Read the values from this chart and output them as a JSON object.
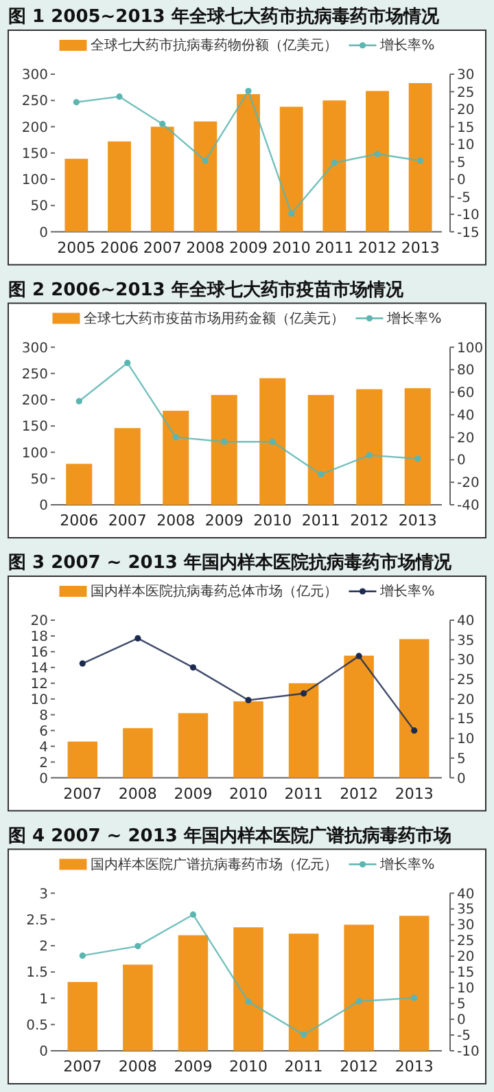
{
  "chart_data": [
    {
      "type": "bar",
      "title": "图 1  2005~2013 年全球七大药市抗病毒药市场情况",
      "categories": [
        "2005",
        "2006",
        "2007",
        "2008",
        "2009",
        "2010",
        "2011",
        "2012",
        "2013"
      ],
      "series": [
        {
          "name": "全球七大药市抗病毒药物份额（亿美元）",
          "color": "#f0961e",
          "values": [
            139,
            172,
            200,
            210,
            262,
            238,
            250,
            268,
            283
          ]
        },
        {
          "name": "增长率%",
          "type": "line",
          "axis": "y2",
          "color": "#5bb5b0",
          "values": [
            22,
            23.6,
            15.8,
            5.3,
            25.2,
            -9.8,
            4.7,
            7.2,
            5.3
          ]
        }
      ],
      "ylim": [
        0,
        300
      ],
      "yticks": [
        0,
        50,
        100,
        150,
        200,
        250,
        300
      ],
      "y2lim": [
        -15,
        30
      ],
      "y2ticks": [
        -15,
        -10,
        -5,
        0,
        5,
        10,
        15,
        20,
        25,
        30
      ],
      "legend": "top",
      "marker": "circle"
    },
    {
      "type": "bar",
      "title": "图 2  2006~2013 年全球七大药市疫苗市场情况",
      "categories": [
        "2006",
        "2007",
        "2008",
        "2009",
        "2010",
        "2011",
        "2012",
        "2013"
      ],
      "series": [
        {
          "name": "全球七大药市疫苗市场用药金额（亿美元）",
          "color": "#f0961e",
          "values": [
            78,
            146,
            179,
            209,
            241,
            209,
            220,
            222
          ]
        },
        {
          "name": "增长率%",
          "type": "line",
          "axis": "y2",
          "color": "#5bb5b0",
          "values": [
            52,
            86,
            20,
            16,
            16,
            -13,
            4,
            1
          ]
        }
      ],
      "ylim": [
        0,
        300
      ],
      "yticks": [
        0,
        50,
        100,
        150,
        200,
        250,
        300
      ],
      "y2lim": [
        -40,
        100
      ],
      "y2ticks": [
        -40,
        -20,
        0,
        20,
        40,
        60,
        80,
        100
      ],
      "legend": "top",
      "marker": "circle"
    },
    {
      "type": "bar",
      "title": "图 3  2007 ~ 2013 年国内样本医院抗病毒药市场情况",
      "categories": [
        "2007",
        "2008",
        "2009",
        "2010",
        "2011",
        "2012",
        "2013"
      ],
      "series": [
        {
          "name": "国内样本医院抗病毒药总体市场（亿元）",
          "color": "#f0961e",
          "values": [
            4.6,
            6.3,
            8.2,
            9.7,
            12,
            15.5,
            17.6
          ]
        },
        {
          "name": "增长率%",
          "type": "line",
          "axis": "y2",
          "color": "#1d2b50",
          "values": [
            29,
            35.4,
            28,
            19.7,
            21.4,
            30.9,
            12
          ]
        }
      ],
      "ylim": [
        0,
        20
      ],
      "yticks": [
        0,
        2,
        4,
        6,
        8,
        10,
        12,
        14,
        16,
        18,
        20
      ],
      "y2lim": [
        0,
        40
      ],
      "y2ticks": [
        0,
        5,
        10,
        15,
        20,
        25,
        30,
        35,
        40
      ],
      "legend": "top",
      "marker": "circle"
    },
    {
      "type": "bar",
      "title": "图 4  2007 ~ 2013 年国内样本医院广谱抗病毒药市场",
      "categories": [
        "2007",
        "2008",
        "2009",
        "2010",
        "2011",
        "2012",
        "2013"
      ],
      "series": [
        {
          "name": "国内样本医院广谱抗病毒药市场（亿元）",
          "color": "#f0961e",
          "values": [
            1.31,
            1.64,
            2.2,
            2.35,
            2.23,
            2.4,
            2.57
          ]
        },
        {
          "name": "增长率%",
          "type": "line",
          "axis": "y2",
          "color": "#5bb5b0",
          "values": [
            20.2,
            23.2,
            33.2,
            5.6,
            -4.9,
            5.7,
            6.8
          ]
        }
      ],
      "ylim": [
        0,
        3
      ],
      "yticks": [
        0,
        0.5,
        1,
        1.5,
        2,
        2.5,
        3
      ],
      "y2lim": [
        -10,
        40
      ],
      "y2ticks": [
        -10,
        -5,
        0,
        5,
        10,
        15,
        20,
        25,
        30,
        35,
        40
      ],
      "legend": "top",
      "marker": "circle"
    }
  ]
}
